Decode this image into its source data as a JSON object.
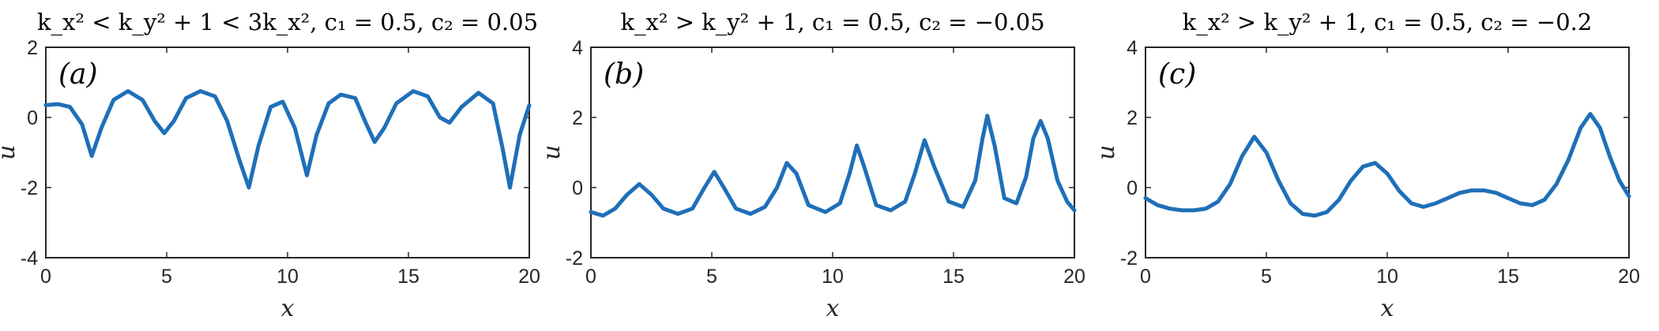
{
  "chart_data": [
    {
      "type": "line",
      "title": "k_x² < k_y² + 1 < 3k_x², c₁ = 0.5, c₂ = 0.05",
      "panel_label": "(a)",
      "xlabel": "x",
      "ylabel": "u",
      "xlim": [
        0,
        20
      ],
      "ylim": [
        -4,
        2
      ],
      "xticks": [
        0,
        5,
        10,
        15,
        20
      ],
      "yticks": [
        -4,
        -2,
        0,
        2
      ],
      "color": "#1f6fb8",
      "x": [
        0,
        0.5,
        1,
        1.5,
        1.9,
        2.3,
        2.8,
        3.4,
        4,
        4.5,
        4.9,
        5.3,
        5.8,
        6.4,
        7,
        7.5,
        8,
        8.4,
        8.8,
        9.3,
        9.8,
        10.3,
        10.8,
        11.2,
        11.7,
        12.2,
        12.8,
        13.2,
        13.6,
        14,
        14.5,
        15.2,
        15.8,
        16.3,
        16.7,
        17.2,
        17.9,
        18.5,
        18.9,
        19.2,
        19.6,
        20
      ],
      "y": [
        0.35,
        0.38,
        0.3,
        -0.2,
        -1.1,
        -0.3,
        0.5,
        0.75,
        0.5,
        -0.1,
        -0.45,
        -0.1,
        0.55,
        0.75,
        0.6,
        -0.1,
        -1.2,
        -2.0,
        -0.8,
        0.3,
        0.45,
        -0.3,
        -1.65,
        -0.5,
        0.4,
        0.65,
        0.55,
        -0.1,
        -0.7,
        -0.3,
        0.4,
        0.75,
        0.6,
        0.0,
        -0.15,
        0.3,
        0.7,
        0.4,
        -0.9,
        -2.0,
        -0.5,
        0.35
      ]
    },
    {
      "type": "line",
      "title": "k_x² > k_y² + 1, c₁ = 0.5, c₂ = −0.05",
      "panel_label": "(b)",
      "xlabel": "x",
      "ylabel": "u",
      "xlim": [
        0,
        20
      ],
      "ylim": [
        -2,
        4
      ],
      "xticks": [
        0,
        5,
        10,
        15,
        20
      ],
      "yticks": [
        -2,
        0,
        2,
        4
      ],
      "color": "#1f6fb8",
      "x": [
        0,
        0.5,
        1,
        1.5,
        2.0,
        2.5,
        3,
        3.6,
        4.2,
        4.7,
        5.1,
        5.5,
        6,
        6.6,
        7.2,
        7.7,
        8.1,
        8.5,
        9,
        9.7,
        10.3,
        10.7,
        11.0,
        11.3,
        11.8,
        12.4,
        13,
        13.4,
        13.8,
        14.2,
        14.8,
        15.4,
        15.9,
        16.2,
        16.4,
        16.7,
        17.1,
        17.6,
        18.0,
        18.3,
        18.6,
        18.9,
        19.3,
        19.7,
        20
      ],
      "y": [
        -0.7,
        -0.8,
        -0.6,
        -0.2,
        0.1,
        -0.2,
        -0.6,
        -0.75,
        -0.6,
        0.0,
        0.45,
        0.0,
        -0.6,
        -0.75,
        -0.55,
        0.0,
        0.7,
        0.4,
        -0.5,
        -0.7,
        -0.45,
        0.4,
        1.2,
        0.6,
        -0.5,
        -0.65,
        -0.4,
        0.4,
        1.35,
        0.6,
        -0.4,
        -0.55,
        0.2,
        1.4,
        2.05,
        1.2,
        -0.3,
        -0.45,
        0.3,
        1.4,
        1.9,
        1.4,
        0.2,
        -0.4,
        -0.65
      ]
    },
    {
      "type": "line",
      "title": "k_x² > k_y² + 1, c₁ = 0.5, c₂ = −0.2",
      "panel_label": "(c)",
      "xlabel": "x",
      "ylabel": "u",
      "xlim": [
        0,
        20
      ],
      "ylim": [
        -2,
        4
      ],
      "xticks": [
        0,
        5,
        10,
        15,
        20
      ],
      "yticks": [
        -2,
        0,
        2,
        4
      ],
      "color": "#1f6fb8",
      "x": [
        0,
        0.5,
        1,
        1.5,
        2,
        2.5,
        3,
        3.5,
        4,
        4.5,
        5,
        5.5,
        6,
        6.5,
        7,
        7.5,
        8,
        8.5,
        9,
        9.5,
        10,
        10.5,
        11,
        11.5,
        12,
        12.5,
        13,
        13.5,
        14,
        14.5,
        15,
        15.5,
        16,
        16.5,
        17,
        17.5,
        18,
        18.4,
        18.8,
        19.2,
        19.6,
        20
      ],
      "y": [
        -0.3,
        -0.5,
        -0.6,
        -0.65,
        -0.65,
        -0.6,
        -0.4,
        0.1,
        0.9,
        1.45,
        1.0,
        0.2,
        -0.45,
        -0.75,
        -0.8,
        -0.7,
        -0.35,
        0.2,
        0.6,
        0.7,
        0.4,
        -0.1,
        -0.45,
        -0.55,
        -0.45,
        -0.3,
        -0.15,
        -0.08,
        -0.08,
        -0.15,
        -0.3,
        -0.45,
        -0.5,
        -0.35,
        0.1,
        0.8,
        1.7,
        2.1,
        1.7,
        0.9,
        0.2,
        -0.25
      ]
    }
  ]
}
